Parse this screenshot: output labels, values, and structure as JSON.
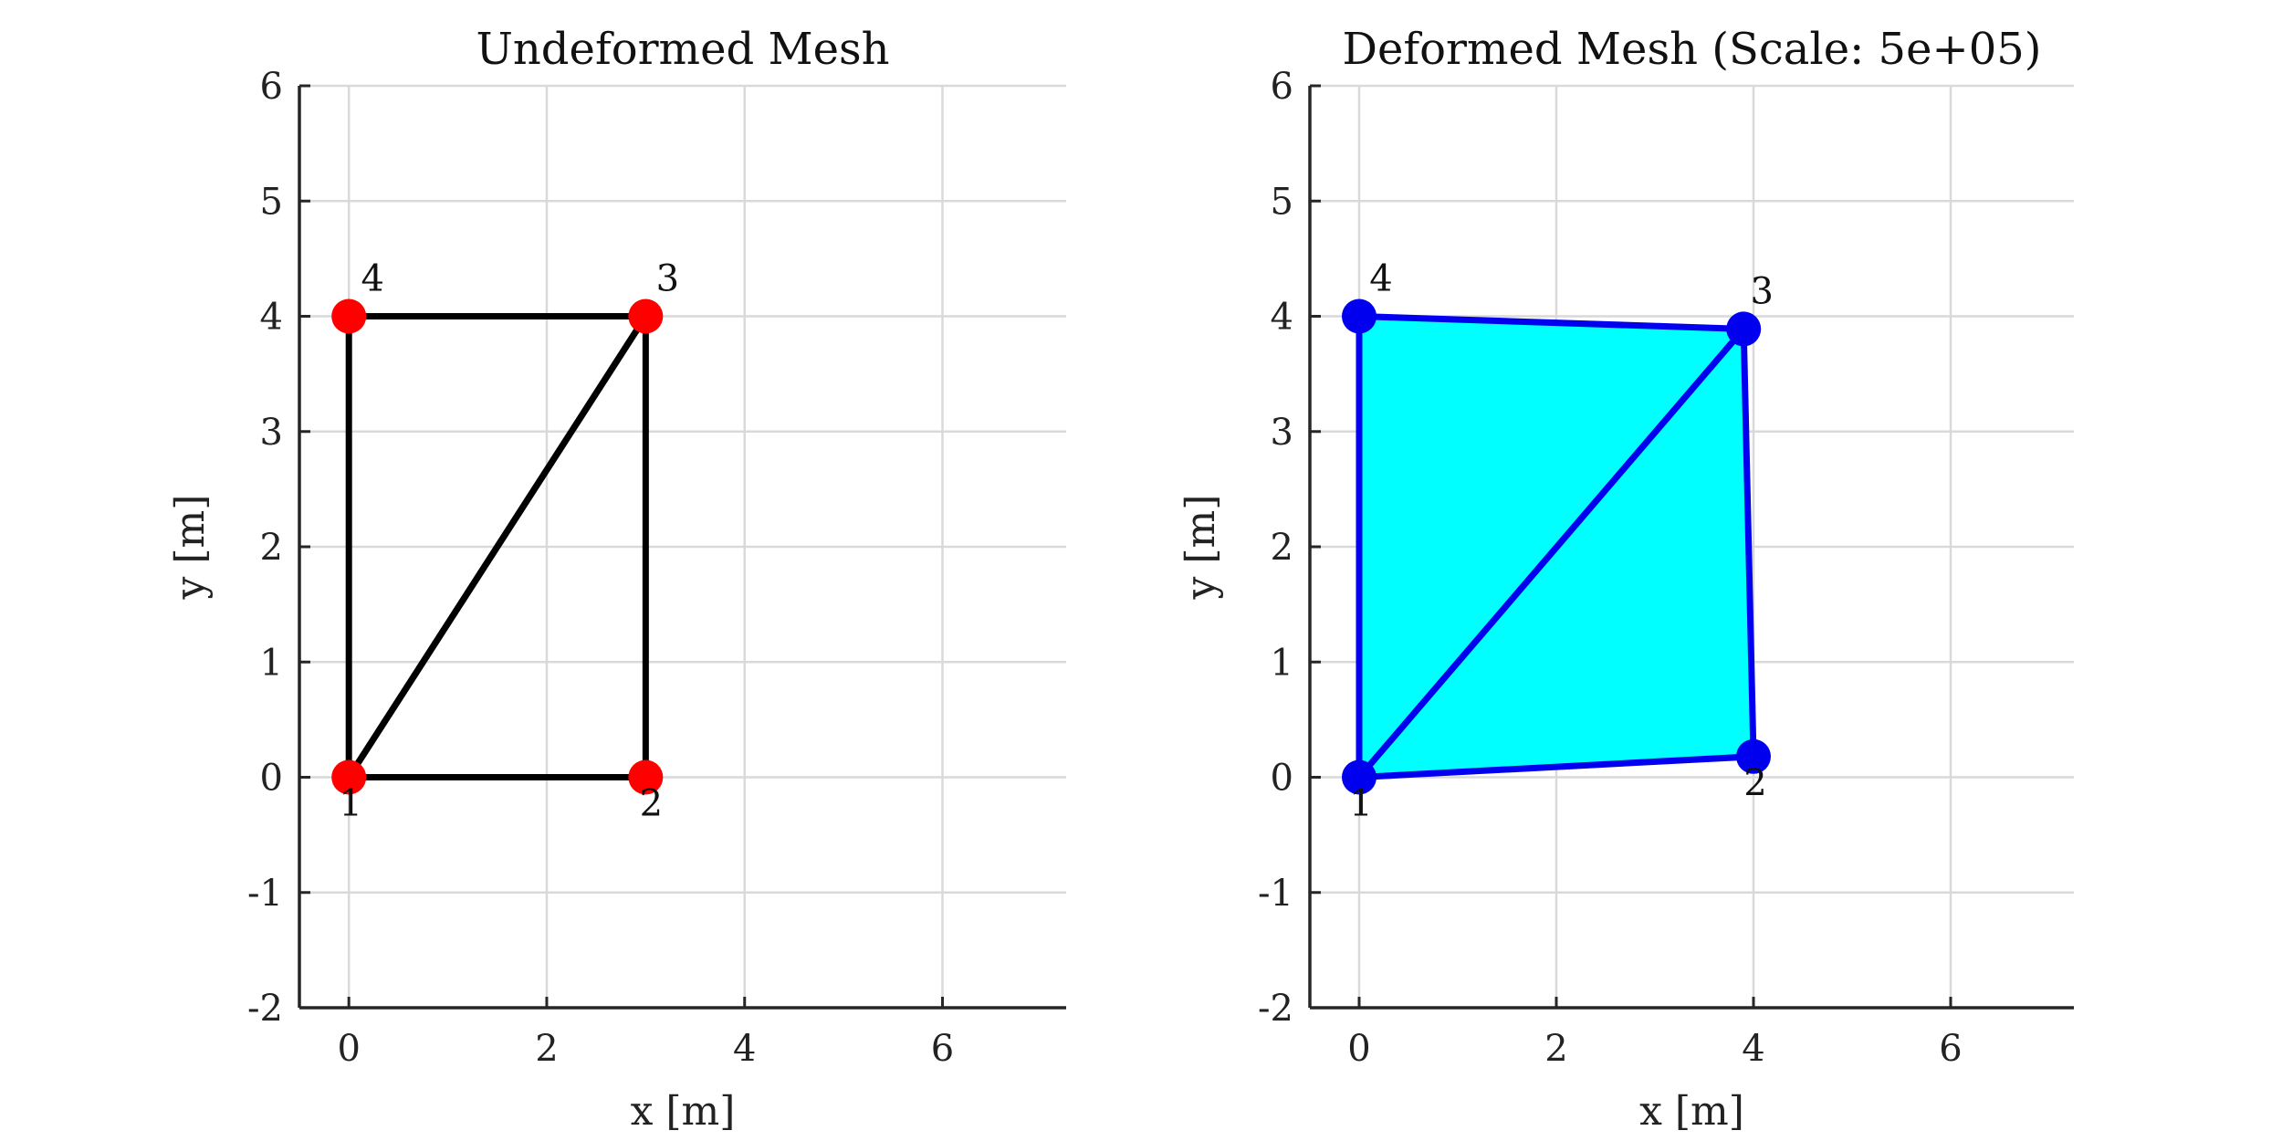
{
  "chart_data": [
    {
      "type": "mesh",
      "title": "Undeformed Mesh",
      "xlabel": "x [m]",
      "ylabel": "y [m]",
      "xlim": [
        -0.5,
        7.25
      ],
      "ylim": [
        -2,
        6
      ],
      "xticks": [
        0,
        2,
        4,
        6
      ],
      "yticks": [
        -2,
        -1,
        0,
        1,
        2,
        3,
        4,
        5,
        6
      ],
      "grid": true,
      "colors": {
        "edge": "#000000",
        "node": "#ff0000",
        "fill": "none"
      },
      "nodes": [
        {
          "id": "1",
          "x": 0,
          "y": 0
        },
        {
          "id": "2",
          "x": 3,
          "y": 0
        },
        {
          "id": "3",
          "x": 3,
          "y": 4
        },
        {
          "id": "4",
          "x": 0,
          "y": 4
        }
      ],
      "elements": [
        [
          1,
          2,
          3
        ],
        [
          1,
          3,
          4
        ]
      ]
    },
    {
      "type": "mesh",
      "title": "Deformed Mesh (Scale: 5e+05)",
      "xlabel": "x [m]",
      "ylabel": "y [m]",
      "xlim": [
        -0.5,
        7.25
      ],
      "ylim": [
        -2,
        6
      ],
      "xticks": [
        0,
        2,
        4,
        6
      ],
      "yticks": [
        -2,
        -1,
        0,
        1,
        2,
        3,
        4,
        5,
        6
      ],
      "grid": true,
      "colors": {
        "edge": "#0000ee",
        "node": "#0000ee",
        "fill": "#00ffff"
      },
      "nodes": [
        {
          "id": "1",
          "x": 0,
          "y": 0
        },
        {
          "id": "2",
          "x": 4.0,
          "y": 0.18
        },
        {
          "id": "3",
          "x": 3.9,
          "y": 3.89
        },
        {
          "id": "4",
          "x": 0,
          "y": 4
        }
      ],
      "elements": [
        [
          1,
          2,
          3
        ],
        [
          1,
          3,
          4
        ]
      ]
    }
  ]
}
